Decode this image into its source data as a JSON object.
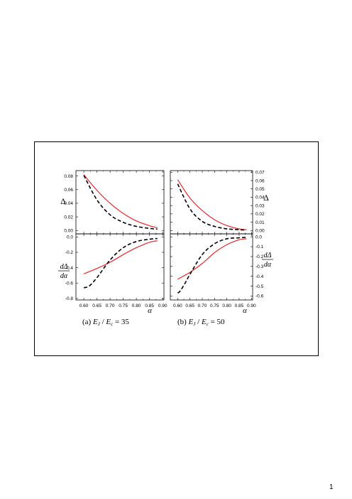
{
  "page_number": "1",
  "chart_data": [
    {
      "type": "line",
      "panel": "a-top",
      "caption": "(a)  E_J / E_c = 35",
      "ylabel": "Δ",
      "xlim": [
        0.57,
        0.905
      ],
      "ylim": [
        -0.005,
        0.088
      ],
      "y_ticks": [
        0.0,
        0.02,
        0.04,
        0.06,
        0.08
      ],
      "y_tick_labels": [
        "0.00",
        "0.02",
        "0.04",
        "0.06",
        "0.08"
      ],
      "series": [
        {
          "style": "solid",
          "color": "#e8262b",
          "x": [
            0.6,
            0.65,
            0.7,
            0.75,
            0.8,
            0.85,
            0.88
          ],
          "y": [
            0.082,
            0.059,
            0.04,
            0.025,
            0.014,
            0.007,
            0.004
          ]
        },
        {
          "style": "dashed",
          "color": "#000000",
          "x": [
            0.6,
            0.65,
            0.7,
            0.75,
            0.8,
            0.85,
            0.88
          ],
          "y": [
            0.081,
            0.045,
            0.023,
            0.012,
            0.006,
            0.003,
            0.002
          ]
        }
      ]
    },
    {
      "type": "line",
      "panel": "a-bottom",
      "ylabel": "dΔ/dα",
      "xlabel": "α",
      "xlim": [
        0.57,
        0.905
      ],
      "ylim": [
        -0.82,
        0.04
      ],
      "x_ticks": [
        0.6,
        0.65,
        0.7,
        0.75,
        0.8,
        0.85,
        0.9
      ],
      "x_tick_labels": [
        "0.60",
        "0.65",
        "0.70",
        "0.75",
        "0.80",
        "0.85",
        "0.90"
      ],
      "y_ticks": [
        0.0,
        -0.2,
        -0.4,
        -0.6,
        -0.8
      ],
      "y_tick_labels": [
        "0.0",
        "-0.2",
        "-0.4",
        "-0.6",
        "-0.8"
      ],
      "series": [
        {
          "style": "solid",
          "color": "#e8262b",
          "x": [
            0.6,
            0.65,
            0.7,
            0.75,
            0.8,
            0.85,
            0.88
          ],
          "y": [
            -0.48,
            -0.41,
            -0.33,
            -0.23,
            -0.14,
            -0.07,
            -0.05
          ]
        },
        {
          "style": "dashed",
          "color": "#000000",
          "x": [
            0.6,
            0.62,
            0.65,
            0.7,
            0.75,
            0.8,
            0.85,
            0.88
          ],
          "y": [
            -0.66,
            -0.64,
            -0.53,
            -0.3,
            -0.14,
            -0.06,
            -0.03,
            -0.02
          ]
        }
      ]
    },
    {
      "type": "line",
      "panel": "b-top",
      "caption": "(b)  E_J / E_c = 50",
      "ylabel": "Δ",
      "xlim": [
        0.57,
        0.905
      ],
      "ylim": [
        -0.004,
        0.072
      ],
      "y_ticks": [
        0.0,
        0.01,
        0.02,
        0.03,
        0.04,
        0.05,
        0.06,
        0.07
      ],
      "y_tick_labels": [
        "0.00",
        "0.01",
        "0.02",
        "0.03",
        "0.04",
        "0.05",
        "0.06",
        "0.07"
      ],
      "series": [
        {
          "style": "solid",
          "color": "#e8262b",
          "x": [
            0.6,
            0.65,
            0.7,
            0.75,
            0.8,
            0.85,
            0.88
          ],
          "y": [
            0.061,
            0.039,
            0.024,
            0.013,
            0.006,
            0.002,
            0.001
          ]
        },
        {
          "style": "dashed",
          "color": "#000000",
          "x": [
            0.6,
            0.65,
            0.7,
            0.75,
            0.8,
            0.85,
            0.88
          ],
          "y": [
            0.056,
            0.026,
            0.011,
            0.005,
            0.002,
            0.001,
            0.0005
          ]
        }
      ]
    },
    {
      "type": "line",
      "panel": "b-bottom",
      "ylabel": "dΔ/dα",
      "xlabel": "α",
      "xlim": [
        0.57,
        0.905
      ],
      "ylim": [
        -0.64,
        0.03
      ],
      "x_ticks": [
        0.6,
        0.65,
        0.7,
        0.75,
        0.8,
        0.85,
        0.9
      ],
      "x_tick_labels": [
        "0.60",
        "0.65",
        "0.70",
        "0.75",
        "0.80",
        "0.85",
        "0.90"
      ],
      "y_ticks": [
        0.0,
        -0.1,
        -0.2,
        -0.3,
        -0.4,
        -0.5,
        -0.6
      ],
      "y_tick_labels": [
        "0.0",
        "-0.1",
        "-0.2",
        "-0.3",
        "-0.4",
        "-0.5",
        "-0.6"
      ],
      "series": [
        {
          "style": "solid",
          "color": "#e8262b",
          "x": [
            0.6,
            0.65,
            0.7,
            0.75,
            0.8,
            0.85,
            0.88
          ],
          "y": [
            -0.43,
            -0.36,
            -0.27,
            -0.16,
            -0.08,
            -0.03,
            -0.02
          ]
        },
        {
          "style": "dashed",
          "color": "#000000",
          "x": [
            0.6,
            0.61,
            0.63,
            0.65,
            0.7,
            0.75,
            0.8,
            0.85,
            0.88
          ],
          "y": [
            -0.57,
            -0.55,
            -0.47,
            -0.38,
            -0.18,
            -0.07,
            -0.02,
            -0.01,
            -0.005
          ]
        }
      ]
    }
  ]
}
